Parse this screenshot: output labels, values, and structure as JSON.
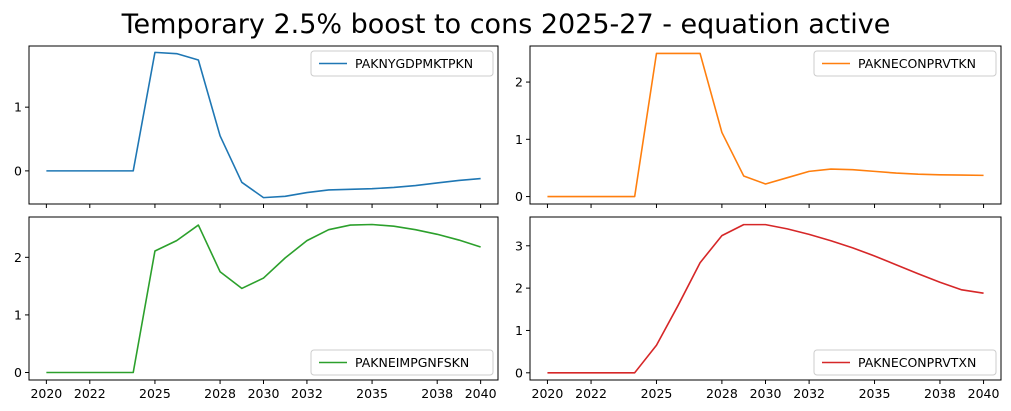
{
  "title": "Temporary 2.5% boost to cons 2025-27 - equation active",
  "chart_data": [
    {
      "type": "line",
      "series": [
        {
          "name": "PAKNYGDPMKTPKN",
          "color": "#1f77b4",
          "x": [
            2020,
            2021,
            2022,
            2023,
            2024,
            2025,
            2026,
            2027,
            2028,
            2029,
            2030,
            2031,
            2032,
            2033,
            2034,
            2035,
            2036,
            2037,
            2038,
            2039,
            2040
          ],
          "values": [
            0,
            0,
            0,
            0,
            0,
            1.86,
            1.84,
            1.74,
            0.55,
            -0.18,
            -0.42,
            -0.4,
            -0.34,
            -0.3,
            -0.29,
            -0.28,
            -0.26,
            -0.23,
            -0.19,
            -0.15,
            -0.12
          ]
        }
      ],
      "xlim": [
        2019.2,
        2040.8
      ],
      "ylim": [
        -0.52,
        1.96
      ],
      "xticks": [
        2020,
        2022,
        2025,
        2028,
        2030,
        2032,
        2035,
        2038,
        2040
      ],
      "xtick_labels": [
        "2020",
        "2022",
        "2025",
        "2028",
        "2030",
        "2032",
        "2035",
        "2038",
        "2040"
      ],
      "yticks": [
        0,
        1
      ],
      "ytick_labels": [
        "0",
        "1"
      ],
      "show_xtick_labels": false,
      "legend": "upper right",
      "grid": false
    },
    {
      "type": "line",
      "series": [
        {
          "name": "PAKNECONPRVTKN",
          "color": "#ff7f0e",
          "x": [
            2020,
            2021,
            2022,
            2023,
            2024,
            2025,
            2026,
            2027,
            2028,
            2029,
            2030,
            2031,
            2032,
            2033,
            2034,
            2035,
            2036,
            2037,
            2038,
            2039,
            2040
          ],
          "values": [
            0,
            0,
            0,
            0,
            0,
            2.5,
            2.5,
            2.5,
            1.12,
            0.36,
            0.22,
            0.33,
            0.44,
            0.48,
            0.47,
            0.44,
            0.41,
            0.39,
            0.38,
            0.375,
            0.37
          ]
        }
      ],
      "xlim": [
        2019.2,
        2040.8
      ],
      "ylim": [
        -0.13,
        2.63
      ],
      "xticks": [
        2020,
        2022,
        2025,
        2028,
        2030,
        2032,
        2035,
        2038,
        2040
      ],
      "xtick_labels": [
        "2020",
        "2022",
        "2025",
        "2028",
        "2030",
        "2032",
        "2035",
        "2038",
        "2040"
      ],
      "yticks": [
        0,
        1,
        2
      ],
      "ytick_labels": [
        "0",
        "1",
        "2"
      ],
      "show_xtick_labels": false,
      "legend": "upper right",
      "grid": false
    },
    {
      "type": "line",
      "series": [
        {
          "name": "PAKNEIMPGNFSKN",
          "color": "#2ca02c",
          "x": [
            2020,
            2021,
            2022,
            2023,
            2024,
            2025,
            2026,
            2027,
            2028,
            2029,
            2030,
            2031,
            2032,
            2033,
            2034,
            2035,
            2036,
            2037,
            2038,
            2039,
            2040
          ],
          "values": [
            0,
            0,
            0,
            0,
            0,
            2.11,
            2.29,
            2.56,
            1.75,
            1.46,
            1.64,
            1.99,
            2.29,
            2.48,
            2.56,
            2.57,
            2.54,
            2.48,
            2.4,
            2.3,
            2.18
          ]
        }
      ],
      "xlim": [
        2019.2,
        2040.8
      ],
      "ylim": [
        -0.13,
        2.7
      ],
      "xticks": [
        2020,
        2022,
        2025,
        2028,
        2030,
        2032,
        2035,
        2038,
        2040
      ],
      "xtick_labels": [
        "2020",
        "2022",
        "2025",
        "2028",
        "2030",
        "2032",
        "2035",
        "2038",
        "2040"
      ],
      "yticks": [
        0,
        1,
        2
      ],
      "ytick_labels": [
        "0",
        "1",
        "2"
      ],
      "show_xtick_labels": true,
      "legend": "lower right",
      "grid": false
    },
    {
      "type": "line",
      "series": [
        {
          "name": "PAKNECONPRVTXN",
          "color": "#d62728",
          "x": [
            2020,
            2021,
            2022,
            2023,
            2024,
            2025,
            2026,
            2027,
            2028,
            2029,
            2030,
            2031,
            2032,
            2033,
            2034,
            2035,
            2036,
            2037,
            2038,
            2039,
            2040
          ],
          "values": [
            0,
            0,
            0,
            0,
            0,
            0.65,
            1.6,
            2.6,
            3.24,
            3.5,
            3.5,
            3.4,
            3.27,
            3.12,
            2.95,
            2.76,
            2.55,
            2.34,
            2.14,
            1.96,
            1.88
          ]
        }
      ],
      "xlim": [
        2019.2,
        2040.8
      ],
      "ylim": [
        -0.17,
        3.68
      ],
      "xticks": [
        2020,
        2022,
        2025,
        2028,
        2030,
        2032,
        2035,
        2038,
        2040
      ],
      "xtick_labels": [
        "2020",
        "2022",
        "2025",
        "2028",
        "2030",
        "2032",
        "2035",
        "2038",
        "2040"
      ],
      "yticks": [
        0,
        1,
        2,
        3
      ],
      "ytick_labels": [
        "0",
        "1",
        "2",
        "3"
      ],
      "show_xtick_labels": true,
      "legend": "lower right",
      "grid": false
    }
  ]
}
